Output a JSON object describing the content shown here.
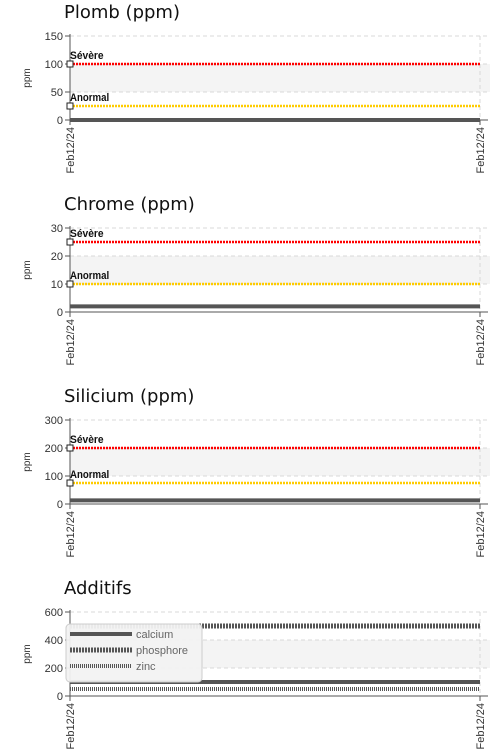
{
  "chart_data": [
    {
      "type": "line",
      "title": "Plomb (ppm)",
      "ylabel": "ppm",
      "ylim": [
        0,
        150
      ],
      "yticks": [
        "0",
        "50",
        "100",
        "150"
      ],
      "xticks": [
        "Feb12/24",
        "Feb12/24"
      ],
      "grid": true,
      "thresholds": [
        {
          "label": "Sévère",
          "value": 100,
          "color": "#ff0000"
        },
        {
          "label": "Anormal",
          "value": 25,
          "color": "#ffcc00"
        }
      ],
      "series": [
        {
          "values": [
            0,
            0
          ],
          "color": "#555555",
          "style": "solid"
        }
      ]
    },
    {
      "type": "line",
      "title": "Chrome (ppm)",
      "ylabel": "ppm",
      "ylim": [
        0,
        30
      ],
      "yticks": [
        "0",
        "10",
        "20",
        "30"
      ],
      "xticks": [
        "Feb12/24",
        "Feb12/24"
      ],
      "grid": true,
      "thresholds": [
        {
          "label": "Sévère",
          "value": 25,
          "color": "#ff0000"
        },
        {
          "label": "Anormal",
          "value": 10,
          "color": "#ffcc00"
        }
      ],
      "series": [
        {
          "values": [
            2,
            2
          ],
          "color": "#555555",
          "style": "solid"
        }
      ]
    },
    {
      "type": "line",
      "title": "Silicium (ppm)",
      "ylabel": "ppm",
      "ylim": [
        0,
        300
      ],
      "yticks": [
        "0",
        "100",
        "200",
        "300"
      ],
      "xticks": [
        "Feb12/24",
        "Feb12/24"
      ],
      "grid": true,
      "thresholds": [
        {
          "label": "Sévère",
          "value": 200,
          "color": "#ff0000"
        },
        {
          "label": "Anormal",
          "value": 75,
          "color": "#ffcc00"
        }
      ],
      "series": [
        {
          "values": [
            13,
            13
          ],
          "color": "#555555",
          "style": "solid"
        }
      ]
    },
    {
      "type": "line",
      "title": "Additifs",
      "ylabel": "ppm",
      "ylim": [
        0,
        600
      ],
      "yticks": [
        "0",
        "200",
        "400",
        "600"
      ],
      "xticks": [
        "Feb12/24",
        "Feb12/24"
      ],
      "grid": true,
      "legend": "top-left",
      "thresholds": [],
      "series": [
        {
          "name": "calcium",
          "values": [
            100,
            100
          ],
          "color": "#555555",
          "style": "solid"
        },
        {
          "name": "phosphore",
          "values": [
            500,
            500
          ],
          "color": "#555555",
          "style": "dotted"
        },
        {
          "name": "zinc",
          "values": [
            50,
            50
          ],
          "color": "#555555",
          "style": "dashed"
        }
      ]
    }
  ]
}
